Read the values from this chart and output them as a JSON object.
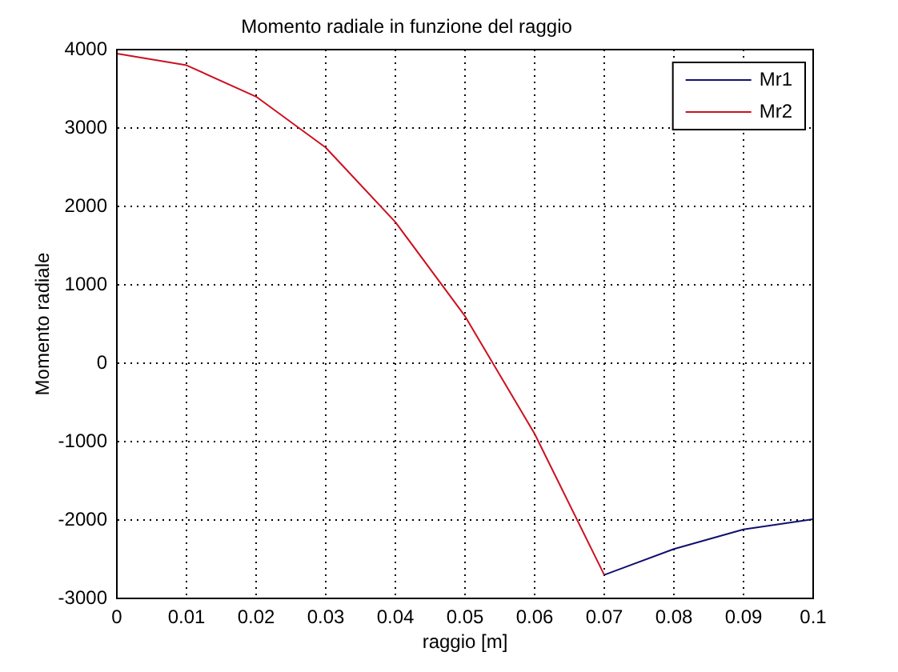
{
  "chart_data": {
    "type": "line",
    "title": "Momento radiale in funzione del raggio",
    "xlabel": "raggio [m]",
    "ylabel": "Momento radiale",
    "x": [
      0,
      0.01,
      0.02,
      0.03,
      0.04,
      0.05,
      0.06,
      0.07,
      0.08,
      0.09,
      0.1
    ],
    "series": [
      {
        "name": "Mr1",
        "color": "#10106e",
        "values": [
          null,
          null,
          null,
          null,
          null,
          null,
          null,
          -2700,
          -2370,
          -2120,
          -1990
        ]
      },
      {
        "name": "Mr2",
        "color": "#cc1020",
        "values": [
          3950,
          3800,
          3400,
          2750,
          1800,
          600,
          -900,
          -2700,
          null,
          null,
          null
        ]
      }
    ],
    "xlim": [
      0,
      0.1
    ],
    "xticks": [
      0,
      0.01,
      0.02,
      0.03,
      0.04,
      0.05,
      0.06,
      0.07,
      0.08,
      0.09,
      0.1
    ],
    "ylim": [
      -3000,
      4000
    ],
    "yticks": [
      -3000,
      -2000,
      -1000,
      0,
      1000,
      2000,
      3000,
      4000
    ],
    "grid": true,
    "legend": "top right",
    "marker": "none",
    "line_style": "solid"
  }
}
